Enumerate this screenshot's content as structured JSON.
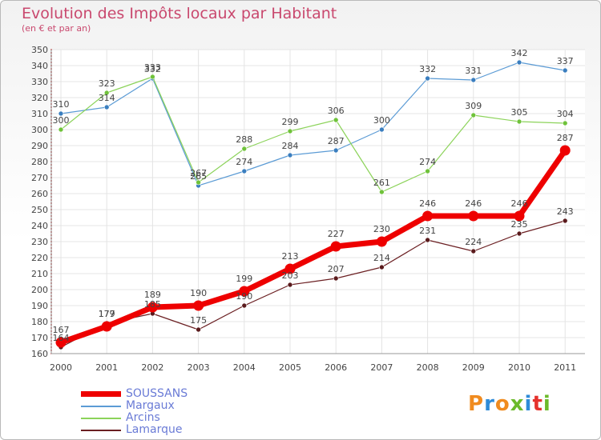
{
  "header": {
    "title": "Evolution des Impôts locaux par Habitant",
    "subtitle": "(en € et par an)"
  },
  "logo": {
    "letters": [
      "P",
      "r",
      "o",
      "x",
      "i",
      "t",
      "i"
    ],
    "colors": [
      "#f08b1f",
      "#2e8bd8",
      "#f08b1f",
      "#6cba2b",
      "#2e8bd8",
      "#e5322d",
      "#6cba2b"
    ]
  },
  "chart_data": {
    "type": "line",
    "x": [
      "2000",
      "2001",
      "2002",
      "2003",
      "2004",
      "2005",
      "2006",
      "2007",
      "2008",
      "2009",
      "2010",
      "2011"
    ],
    "ylim": [
      160,
      350
    ],
    "yticks": [
      160,
      170,
      180,
      190,
      200,
      210,
      220,
      230,
      240,
      250,
      260,
      270,
      280,
      290,
      300,
      310,
      320,
      330,
      340,
      350
    ],
    "grid": true,
    "legend_position": "bottom-left",
    "series": [
      {
        "name": "SOUSSANS",
        "color": "#ee0000",
        "values": [
          167,
          177,
          189,
          190,
          199,
          213,
          227,
          230,
          246,
          246,
          246,
          287
        ]
      },
      {
        "name": "Margaux",
        "color": "#5b9bd5",
        "values": [
          310,
          314,
          332,
          265,
          274,
          284,
          287,
          300,
          332,
          331,
          342,
          337
        ]
      },
      {
        "name": "Arcins",
        "color": "#8cd35a",
        "values": [
          300,
          323,
          333,
          267,
          288,
          299,
          306,
          261,
          274,
          309,
          305,
          304
        ]
      },
      {
        "name": "Lamarque",
        "color": "#6b1f22",
        "values": [
          164,
          179,
          185,
          175,
          190,
          203,
          207,
          214,
          231,
          224,
          235,
          243
        ]
      }
    ]
  }
}
